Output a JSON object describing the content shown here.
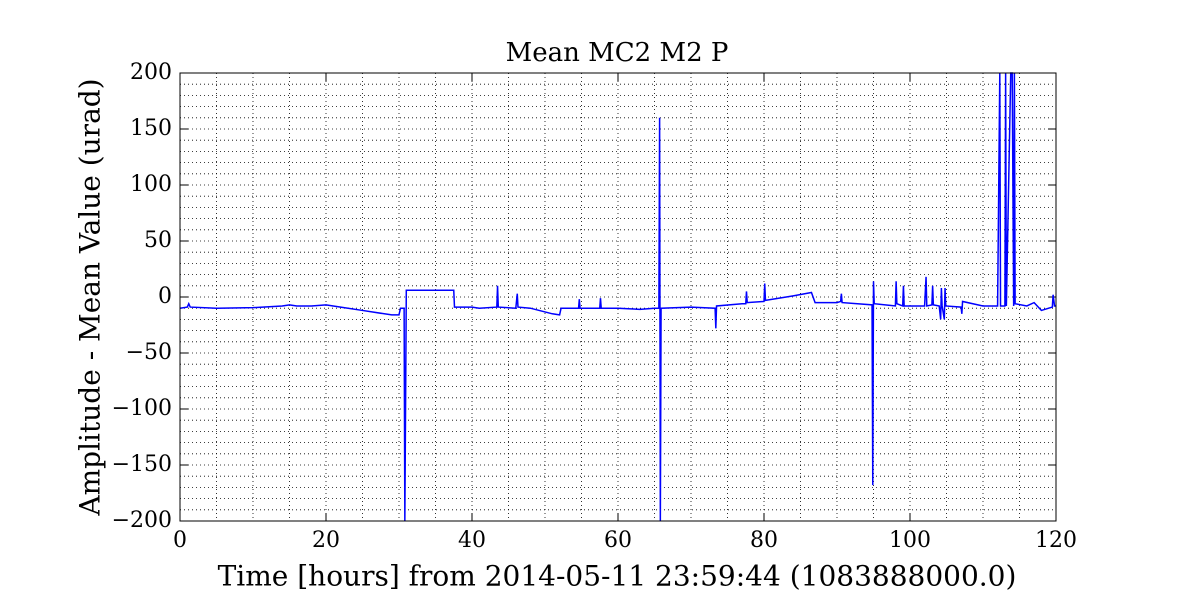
{
  "chart_data": {
    "type": "line",
    "title": "Mean MC2 M2 P",
    "x_label": "Time [hours] from 2014-05-11 23:59:44 (1083888000.0)",
    "y_label": "Amplitude - Mean Value (urad)",
    "color": "#0000ff",
    "grid": true,
    "xlim": [
      0,
      120
    ],
    "ylim": [
      -200,
      200
    ],
    "xticks": [
      0,
      20,
      40,
      60,
      80,
      100,
      120
    ],
    "yticks": [
      {
        "value": -200,
        "label": "−200"
      },
      {
        "value": -150,
        "label": "−150"
      },
      {
        "value": -100,
        "label": "−100"
      },
      {
        "value": -50,
        "label": "−50"
      },
      0,
      50,
      100,
      150,
      200
    ],
    "minor_xticks": [
      0,
      5,
      10,
      15,
      20,
      25,
      30,
      35,
      40,
      45,
      50,
      55,
      60,
      65,
      70,
      75,
      80,
      85,
      90,
      95,
      100,
      105,
      110,
      115,
      120
    ],
    "minor_yticks": [
      -200,
      -190,
      -180,
      -170,
      -160,
      -150,
      -140,
      -130,
      -120,
      -110,
      -100,
      -90,
      -80,
      -70,
      -60,
      -50,
      -40,
      -30,
      -20,
      -10,
      0,
      10,
      20,
      30,
      40,
      50,
      60,
      70,
      80,
      90,
      100,
      110,
      120,
      130,
      140,
      150,
      160,
      170,
      180,
      190,
      200
    ],
    "x": [
      0,
      1,
      1.2,
      1.4,
      5,
      10,
      14,
      15,
      16,
      18,
      20,
      22,
      25,
      29,
      30,
      30.2,
      30.5,
      30.7,
      30.8,
      31,
      37.5,
      37.6,
      40,
      41,
      43.4,
      43.5,
      43.6,
      46,
      46.2,
      46.3,
      48,
      51,
      52,
      52.2,
      54.6,
      54.7,
      54.8,
      57.5,
      57.6,
      57.7,
      60,
      63,
      65,
      65.6,
      65.7,
      65.8,
      65.9,
      70,
      73.3,
      73.4,
      73.5,
      77,
      77.5,
      77.6,
      77.7,
      80,
      80.1,
      80.2,
      84,
      86.5,
      87,
      90,
      90.5,
      90.6,
      90.7,
      94.8,
      94.9,
      95,
      95.1,
      98,
      98.1,
      98.2,
      99,
      99.1,
      99.2,
      102,
      102.2,
      102.3,
      103,
      103.1,
      103.2,
      104,
      104.2,
      104.3,
      104.4,
      104.7,
      104.8,
      104.9,
      107,
      107.1,
      107.2,
      110,
      112,
      112.3,
      112.4,
      113,
      113.1,
      113.2,
      113.8,
      114,
      114.2,
      114.3,
      114.4,
      116,
      117,
      118,
      119,
      119.5,
      119.6,
      119.8,
      120
    ],
    "values": [
      -10,
      -9,
      -6,
      -9,
      -10,
      -9.5,
      -8,
      -7,
      -8,
      -8,
      -7,
      -9,
      -12,
      -16,
      -16,
      -10,
      -10,
      -10,
      -200,
      6,
      6,
      -9,
      -9,
      -10,
      -9,
      10,
      -9,
      -10,
      3,
      -9,
      -10,
      -15,
      -16,
      -10,
      -10,
      -2,
      -10,
      -10,
      -1,
      -10,
      -10,
      -11,
      -10,
      -10,
      160,
      -200,
      -10,
      -9,
      -10,
      -28,
      -8,
      -6,
      -6,
      5,
      -5,
      -4,
      12,
      -3,
      1,
      4,
      -5,
      -5,
      -4,
      3,
      -5,
      -7,
      -168,
      14,
      -6,
      -8,
      14,
      -6,
      -8,
      10,
      -8,
      -8,
      18,
      -8,
      -7,
      10,
      -7,
      -8,
      -20,
      8,
      -8,
      -20,
      8,
      -8,
      -9,
      -15,
      -4,
      -8,
      -8,
      200,
      -8,
      -8,
      200,
      -8,
      200,
      200,
      -8,
      200,
      -6,
      -8,
      -5,
      -12,
      -10,
      -9,
      2,
      -8,
      -8
    ]
  }
}
